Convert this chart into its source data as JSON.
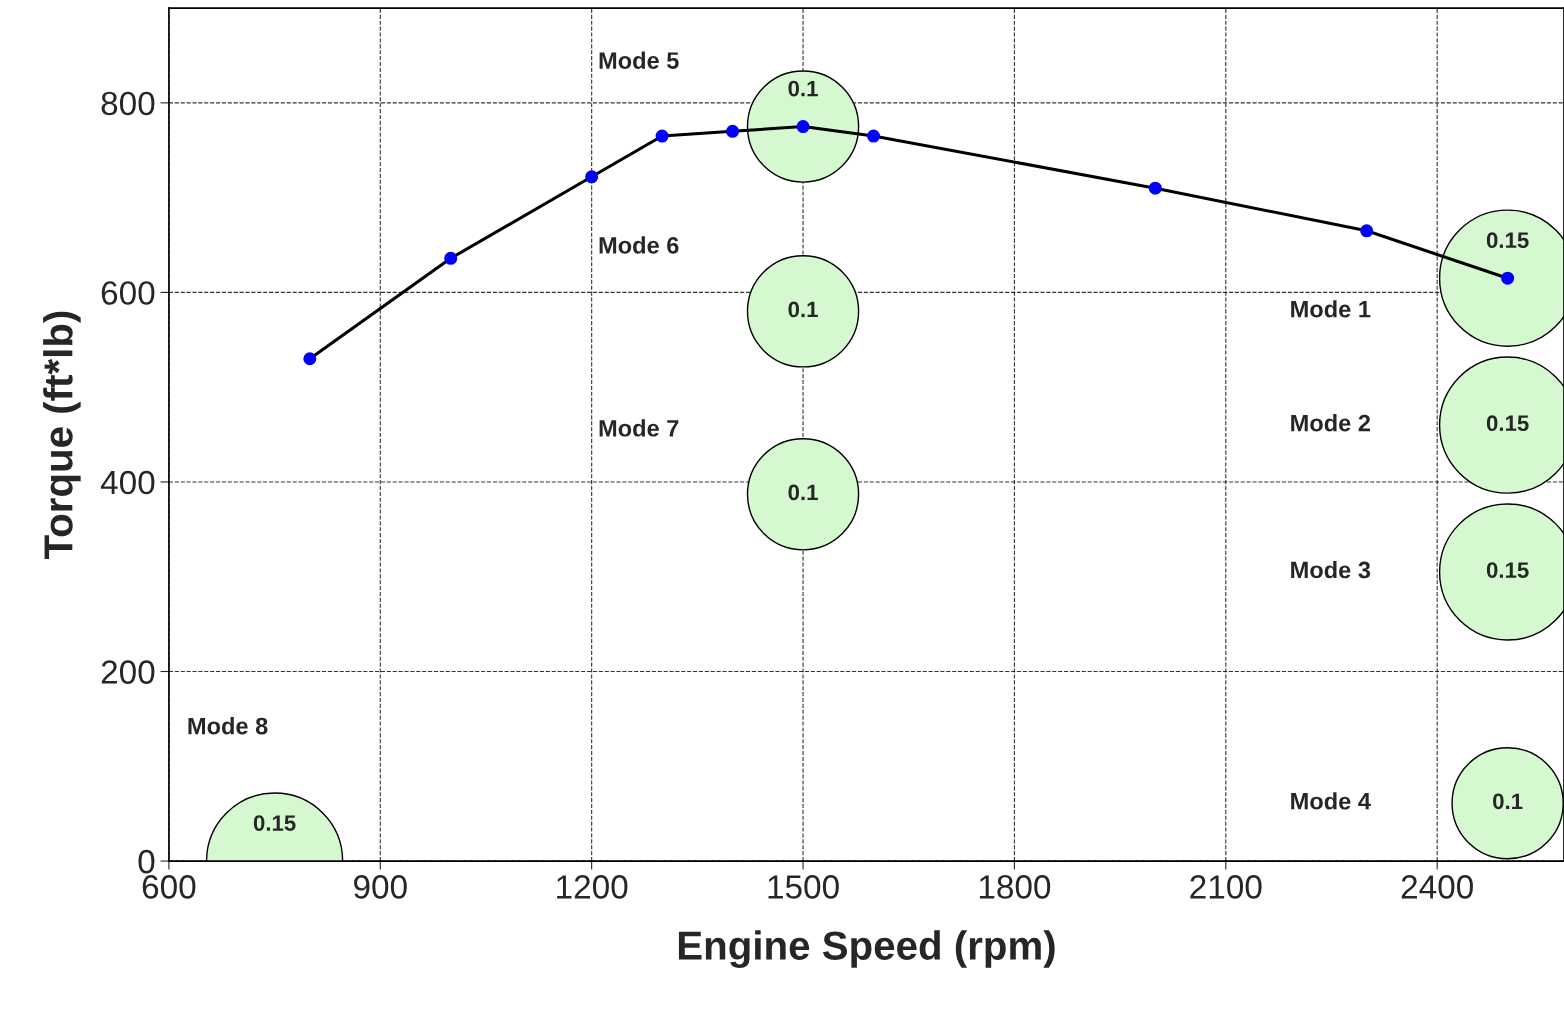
{
  "chart_data": {
    "type": "line",
    "xlabel": "Engine Speed (rpm)",
    "ylabel": "Torque (ft*lb)",
    "xlim": [
      600,
      2580
    ],
    "xticks": [
      600,
      900,
      1200,
      1500,
      1800,
      2100,
      2400
    ],
    "ylim": [
      0,
      900
    ],
    "yticks": [
      0,
      200,
      400,
      600,
      800
    ],
    "grid": true,
    "legend": false,
    "series": [
      {
        "type": "bubble",
        "color": "#d6f8d0",
        "x": [
          2500,
          2500,
          2500,
          2500,
          1500,
          1500,
          1500,
          750
        ],
        "values": [
          615,
          460,
          305,
          61,
          775,
          580,
          387,
          0
        ],
        "sizes": [
          0.15,
          0.15,
          0.15,
          0.1,
          0.1,
          0.1,
          0.1,
          0.15
        ],
        "value_labels": [
          "0.15",
          "0.15",
          "0.15",
          "0.1",
          "0.1",
          "0.1",
          "0.1",
          "0.15"
        ]
      },
      {
        "color": "#000000",
        "marker": "circle",
        "line_style": "solid",
        "x": [
          800,
          1000,
          1200,
          1300,
          1400,
          1500,
          1600,
          2000,
          2300,
          2500
        ],
        "values": [
          530,
          636,
          722,
          765,
          770,
          775,
          765,
          710,
          665,
          615
        ]
      }
    ],
    "annotations": [
      "Mode 1",
      "Mode 2",
      "Mode 3",
      "Mode 4",
      "Mode 5",
      "Mode 6",
      "Mode 7",
      "Mode 8"
    ]
  }
}
